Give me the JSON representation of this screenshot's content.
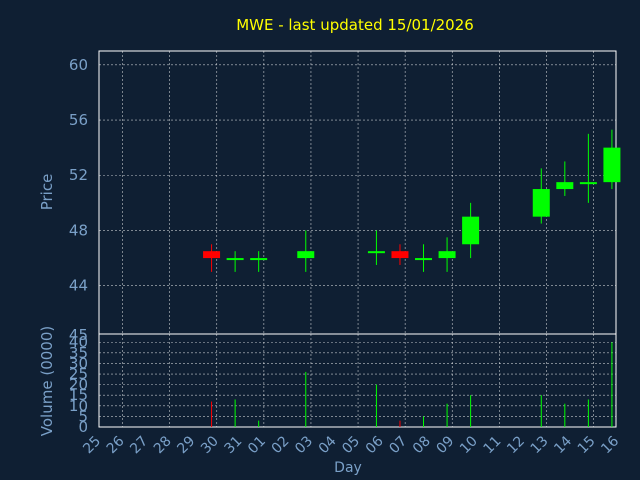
{
  "colors": {
    "background": "#0f1f33",
    "title": "#ffff00",
    "axis_text": "#7aa0c8",
    "grid": "#ffffff",
    "frame": "#ffffff",
    "up": "#00ff00",
    "down": "#ff0000"
  },
  "chart_data": {
    "type": "candlestick",
    "title": "MWE - last updated 15/01/2026",
    "xlabel": "Day",
    "categories": [
      "25",
      "26",
      "27",
      "28",
      "29",
      "30",
      "31",
      "01",
      "02",
      "03",
      "04",
      "05",
      "06",
      "07",
      "08",
      "09",
      "10",
      "11",
      "12",
      "13",
      "14",
      "15",
      "16"
    ],
    "price_panel": {
      "ylabel": "Price",
      "ylim": [
        40.5,
        61
      ],
      "yticks": [
        44,
        48,
        52,
        56,
        60
      ],
      "grid": true
    },
    "volume_panel": {
      "ylabel": "Volume (0000)",
      "ylim": [
        0,
        42
      ],
      "yticks": [
        0,
        5,
        10,
        15,
        20,
        25,
        30,
        35,
        40
      ],
      "top_label": "45",
      "grid": true
    },
    "candles": [
      {
        "day": "29",
        "open": 46.5,
        "high": 47.0,
        "low": 45.0,
        "close": 46.0,
        "volume": 12
      },
      {
        "day": "30",
        "open": 46.0,
        "high": 46.5,
        "low": 45.0,
        "close": 46.0,
        "volume": 13
      },
      {
        "day": "31",
        "open": 46.0,
        "high": 46.5,
        "low": 45.0,
        "close": 46.0,
        "volume": 3
      },
      {
        "day": "02",
        "open": 46.0,
        "high": 48.0,
        "low": 45.0,
        "close": 46.5,
        "volume": 26
      },
      {
        "day": "05",
        "open": 46.5,
        "high": 48.0,
        "low": 45.5,
        "close": 46.5,
        "volume": 20
      },
      {
        "day": "06",
        "open": 46.5,
        "high": 47.0,
        "low": 45.5,
        "close": 46.0,
        "volume": 3
      },
      {
        "day": "07",
        "open": 46.0,
        "high": 47.0,
        "low": 45.0,
        "close": 46.0,
        "volume": 5
      },
      {
        "day": "08",
        "open": 46.0,
        "high": 47.5,
        "low": 45.0,
        "close": 46.5,
        "volume": 11
      },
      {
        "day": "09",
        "open": 47.0,
        "high": 50.0,
        "low": 46.0,
        "close": 49.0,
        "volume": 15
      },
      {
        "day": "12",
        "open": 49.0,
        "high": 52.5,
        "low": 48.5,
        "close": 51.0,
        "volume": 15
      },
      {
        "day": "13",
        "open": 51.0,
        "high": 53.0,
        "low": 50.5,
        "close": 51.5,
        "volume": 11
      },
      {
        "day": "14",
        "open": 51.5,
        "high": 55.0,
        "low": 50.0,
        "close": 51.5,
        "volume": 13
      },
      {
        "day": "15",
        "open": 51.5,
        "high": 55.3,
        "low": 51.0,
        "close": 54.0,
        "volume": 40
      }
    ]
  }
}
